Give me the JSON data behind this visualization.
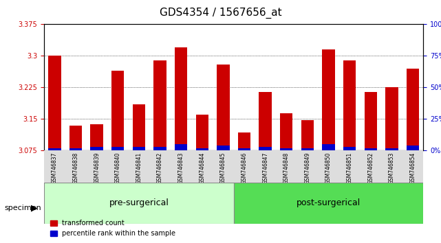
{
  "title": "GDS4354 / 1567656_at",
  "samples": [
    "GSM746837",
    "GSM746838",
    "GSM746839",
    "GSM746840",
    "GSM746841",
    "GSM746842",
    "GSM746843",
    "GSM746844",
    "GSM746845",
    "GSM746846",
    "GSM746847",
    "GSM746848",
    "GSM746849",
    "GSM746850",
    "GSM746851",
    "GSM746852",
    "GSM746853",
    "GSM746854"
  ],
  "transformed_count": [
    3.3,
    3.135,
    3.137,
    3.265,
    3.185,
    3.29,
    3.32,
    3.16,
    3.28,
    3.118,
    3.215,
    3.163,
    3.148,
    3.315,
    3.29,
    3.215,
    3.225,
    3.27
  ],
  "percentile_rank": [
    2,
    2,
    3,
    3,
    3,
    3,
    5,
    2,
    4,
    2,
    3,
    2,
    2,
    5,
    3,
    2,
    2,
    4
  ],
  "y_min": 3.075,
  "y_max": 3.375,
  "y_ticks": [
    3.075,
    3.15,
    3.225,
    3.3,
    3.375
  ],
  "right_y_ticks": [
    0,
    25,
    50,
    75,
    100
  ],
  "bar_color": "#cc0000",
  "percentile_color": "#0000cc",
  "pre_surgical_count": 9,
  "post_surgical_count": 9,
  "pre_surgical_label": "pre-surgerical",
  "post_surgical_label": "post-surgerical",
  "pre_color": "#ccffcc",
  "post_color": "#55dd55",
  "specimen_label": "specimen",
  "legend_red_label": "transformed count",
  "legend_blue_label": "percentile rank within the sample",
  "title_fontsize": 11,
  "tick_fontsize": 7,
  "label_fontsize": 8,
  "group_label_fontsize": 9
}
